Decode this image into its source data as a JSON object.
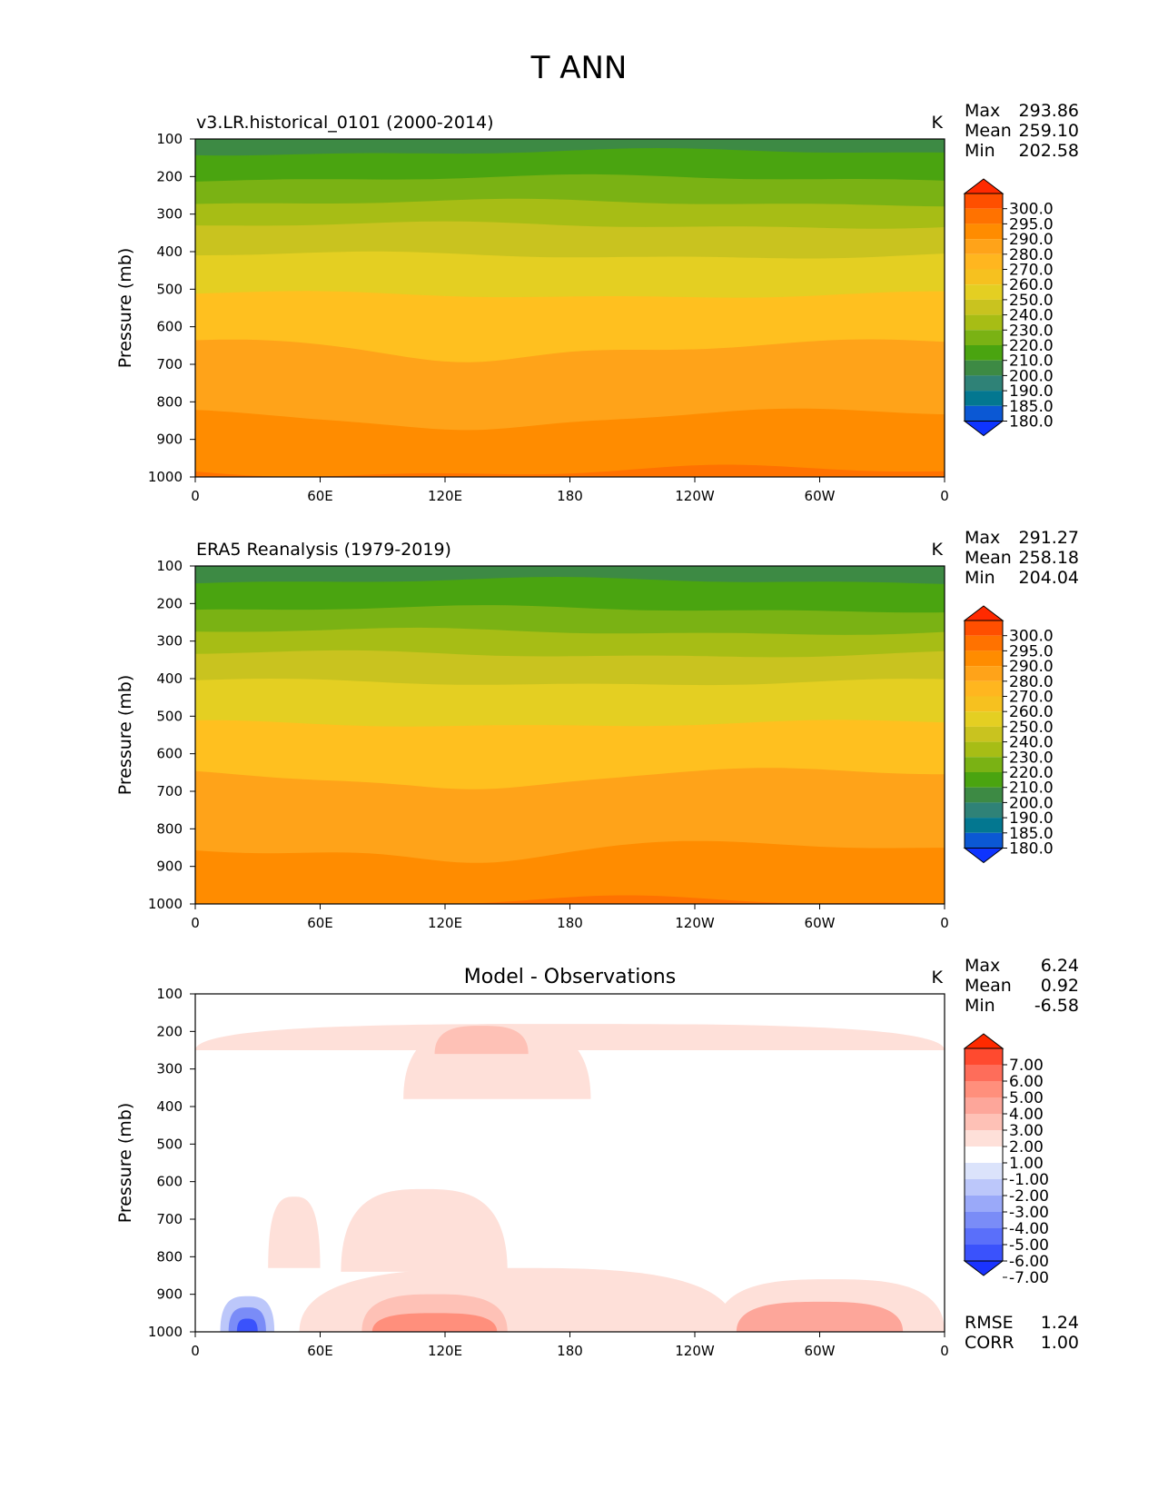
{
  "figure_title": "T ANN",
  "chart_data": [
    {
      "type": "heatmap",
      "title": "v3.LR.historical_0101 (2000-2014)",
      "units": "K",
      "ylabel": "Pressure (mb)",
      "ylim": [
        100,
        1000
      ],
      "y_ticks": [
        "100",
        "200",
        "300",
        "400",
        "500",
        "600",
        "700",
        "800",
        "900",
        "1000"
      ],
      "x_ticks": [
        "0",
        "60E",
        "120E",
        "180",
        "120W",
        "60W",
        "0"
      ],
      "stats": [
        {
          "label": "Max",
          "value": "293.86"
        },
        {
          "label": "Mean",
          "value": "259.10"
        },
        {
          "label": "Min",
          "value": "202.58"
        }
      ],
      "colorbar_levels": [
        "300.0",
        "295.0",
        "290.0",
        "280.0",
        "270.0",
        "260.0",
        "250.0",
        "240.0",
        "230.0",
        "220.0",
        "210.0",
        "200.0",
        "190.0",
        "185.0",
        "180.0"
      ],
      "colorbar_colors": [
        "#ff2a00",
        "#ff4f00",
        "#ff7200",
        "#ff8c00",
        "#ffa319",
        "#ffb61f",
        "#f6c11f",
        "#e4cf22",
        "#c9c31f",
        "#a7bd15",
        "#7ab214",
        "#4aa410",
        "#3d8a44",
        "#2f8277",
        "#037790",
        "#0b58d4",
        "#0e34ff"
      ],
      "bands": [
        {
          "level": 100,
          "color": "#3d8a44"
        },
        {
          "level": 135,
          "color": "#4aa410"
        },
        {
          "level": 205,
          "color": "#7ab214"
        },
        {
          "level": 270,
          "color": "#a7bd15"
        },
        {
          "level": 330,
          "color": "#c9c31f"
        },
        {
          "level": 410,
          "color": "#e4cf22"
        },
        {
          "level": 515,
          "color": "#ffc01f"
        },
        {
          "level": 650,
          "color": "#ffa319"
        },
        {
          "level": 835,
          "color": "#ff8c00"
        },
        {
          "level": 985,
          "color": "#ff7200"
        }
      ]
    },
    {
      "type": "heatmap",
      "title": "ERA5 Reanalysis (1979-2019)",
      "units": "K",
      "ylabel": "Pressure (mb)",
      "ylim": [
        100,
        1000
      ],
      "y_ticks": [
        "100",
        "200",
        "300",
        "400",
        "500",
        "600",
        "700",
        "800",
        "900",
        "1000"
      ],
      "x_ticks": [
        "0",
        "60E",
        "120E",
        "180",
        "120W",
        "60W",
        "0"
      ],
      "stats": [
        {
          "label": "Max",
          "value": "291.27"
        },
        {
          "label": "Mean",
          "value": "258.18"
        },
        {
          "label": "Min",
          "value": "204.04"
        }
      ],
      "colorbar_levels": [
        "300.0",
        "295.0",
        "290.0",
        "280.0",
        "270.0",
        "260.0",
        "250.0",
        "240.0",
        "230.0",
        "220.0",
        "210.0",
        "200.0",
        "190.0",
        "185.0",
        "180.0"
      ],
      "colorbar_colors": [
        "#ff2a00",
        "#ff4f00",
        "#ff7200",
        "#ff8c00",
        "#ffa319",
        "#ffb61f",
        "#f6c11f",
        "#e4cf22",
        "#c9c31f",
        "#a7bd15",
        "#7ab214",
        "#4aa410",
        "#3d8a44",
        "#2f8277",
        "#037790",
        "#0b58d4",
        "#0e34ff"
      ],
      "bands": [
        {
          "level": 100,
          "color": "#3d8a44"
        },
        {
          "level": 140,
          "color": "#4aa410"
        },
        {
          "level": 215,
          "color": "#7ab214"
        },
        {
          "level": 275,
          "color": "#a7bd15"
        },
        {
          "level": 335,
          "color": "#c9c31f"
        },
        {
          "level": 410,
          "color": "#e4cf22"
        },
        {
          "level": 520,
          "color": "#ffc01f"
        },
        {
          "level": 655,
          "color": "#ffa319"
        },
        {
          "level": 850,
          "color": "#ff8c00"
        },
        {
          "level": 995,
          "color": "#ff7200"
        }
      ]
    },
    {
      "type": "heatmap",
      "title": "Model - Observations",
      "units": "K",
      "ylabel": "Pressure (mb)",
      "ylim": [
        100,
        1000
      ],
      "y_ticks": [
        "100",
        "200",
        "300",
        "400",
        "500",
        "600",
        "700",
        "800",
        "900",
        "1000"
      ],
      "x_ticks": [
        "0",
        "60E",
        "120E",
        "180",
        "120W",
        "60W",
        "0"
      ],
      "stats": [
        {
          "label": "Max",
          "value": "6.24"
        },
        {
          "label": "Mean",
          "value": "0.92"
        },
        {
          "label": "Min",
          "value": "-6.58"
        }
      ],
      "colorbar_levels": [
        "7.00",
        "6.00",
        "5.00",
        "4.00",
        "3.00",
        "2.00",
        "1.00",
        "-1.00",
        "-2.00",
        "-3.00",
        "-4.00",
        "-5.00",
        "-6.00",
        "-7.00"
      ],
      "colorbar_colors": [
        "#ff2a00",
        "#ff4a2f",
        "#fe6d5a",
        "#ff8f7c",
        "#fda69a",
        "#fec1b6",
        "#fee0d9",
        "#ffffff",
        "#dbe3fb",
        "#bcc7fa",
        "#9aa9f9",
        "#7a8cf7",
        "#5a6ffa",
        "#3a52fc",
        "#1a33ff"
      ],
      "stats_bottom": [
        {
          "label": "RMSE",
          "value": "1.24"
        },
        {
          "label": "CORR",
          "value": "1.00"
        }
      ],
      "bands": [
        {
          "level": 100,
          "color": "#ffffff"
        }
      ]
    }
  ]
}
